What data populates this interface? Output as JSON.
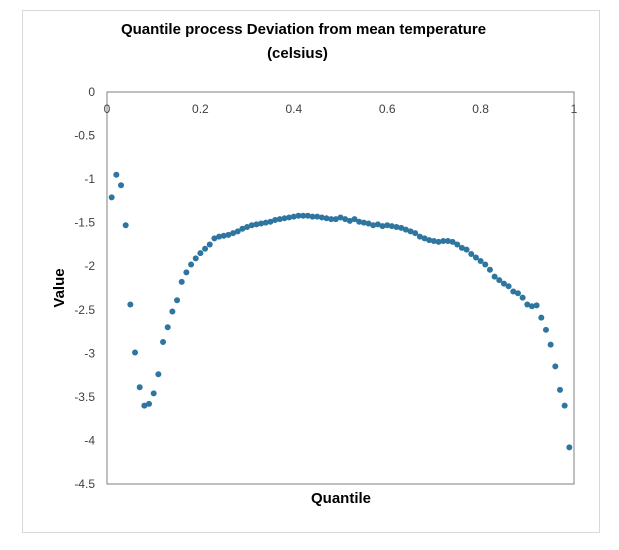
{
  "chart_data": {
    "type": "scatter",
    "title_line1": "Quantile process Deviation from mean temperature",
    "title_line2": "(celsius)",
    "xlabel": "Quantile",
    "ylabel": "Value",
    "xlim": [
      0,
      1
    ],
    "ylim": [
      -4.5,
      0
    ],
    "xticks": [
      "0",
      "0.2",
      "0.4",
      "0.6",
      "0.8",
      "1"
    ],
    "xtick_values": [
      0,
      0.2,
      0.4,
      0.6,
      0.8,
      1
    ],
    "yticks": [
      "0",
      "-0.5",
      "-1",
      "-1.5",
      "-2",
      "-2.5",
      "-3",
      "-3.5",
      "-4",
      "-4.5"
    ],
    "ytick_values": [
      0,
      -0.5,
      -1,
      -1.5,
      -2,
      -2.5,
      -3,
      -3.5,
      -4,
      -4.5
    ],
    "marker_color": "#2e75a0",
    "series": [
      {
        "name": "Quantile process",
        "points": [
          [
            0.01,
            -1.21
          ],
          [
            0.02,
            -0.95
          ],
          [
            0.03,
            -1.07
          ],
          [
            0.04,
            -1.53
          ],
          [
            0.05,
            -2.44
          ],
          [
            0.06,
            -2.99
          ],
          [
            0.07,
            -3.39
          ],
          [
            0.08,
            -3.6
          ],
          [
            0.09,
            -3.58
          ],
          [
            0.1,
            -3.46
          ],
          [
            0.11,
            -3.24
          ],
          [
            0.12,
            -2.87
          ],
          [
            0.13,
            -2.7
          ],
          [
            0.14,
            -2.52
          ],
          [
            0.15,
            -2.39
          ],
          [
            0.16,
            -2.18
          ],
          [
            0.17,
            -2.07
          ],
          [
            0.18,
            -1.98
          ],
          [
            0.19,
            -1.91
          ],
          [
            0.2,
            -1.85
          ],
          [
            0.21,
            -1.8
          ],
          [
            0.22,
            -1.75
          ],
          [
            0.23,
            -1.68
          ],
          [
            0.24,
            -1.66
          ],
          [
            0.25,
            -1.65
          ],
          [
            0.26,
            -1.64
          ],
          [
            0.27,
            -1.62
          ],
          [
            0.28,
            -1.6
          ],
          [
            0.29,
            -1.57
          ],
          [
            0.3,
            -1.55
          ],
          [
            0.31,
            -1.53
          ],
          [
            0.32,
            -1.52
          ],
          [
            0.33,
            -1.51
          ],
          [
            0.34,
            -1.5
          ],
          [
            0.35,
            -1.49
          ],
          [
            0.36,
            -1.47
          ],
          [
            0.37,
            -1.46
          ],
          [
            0.38,
            -1.45
          ],
          [
            0.39,
            -1.44
          ],
          [
            0.4,
            -1.43
          ],
          [
            0.41,
            -1.42
          ],
          [
            0.42,
            -1.42
          ],
          [
            0.43,
            -1.42
          ],
          [
            0.44,
            -1.43
          ],
          [
            0.45,
            -1.43
          ],
          [
            0.46,
            -1.44
          ],
          [
            0.47,
            -1.45
          ],
          [
            0.48,
            -1.46
          ],
          [
            0.49,
            -1.46
          ],
          [
            0.5,
            -1.44
          ],
          [
            0.51,
            -1.46
          ],
          [
            0.52,
            -1.48
          ],
          [
            0.53,
            -1.46
          ],
          [
            0.54,
            -1.49
          ],
          [
            0.55,
            -1.5
          ],
          [
            0.56,
            -1.51
          ],
          [
            0.57,
            -1.53
          ],
          [
            0.58,
            -1.52
          ],
          [
            0.59,
            -1.54
          ],
          [
            0.6,
            -1.53
          ],
          [
            0.61,
            -1.54
          ],
          [
            0.62,
            -1.55
          ],
          [
            0.63,
            -1.56
          ],
          [
            0.64,
            -1.58
          ],
          [
            0.65,
            -1.6
          ],
          [
            0.66,
            -1.62
          ],
          [
            0.67,
            -1.66
          ],
          [
            0.68,
            -1.68
          ],
          [
            0.69,
            -1.7
          ],
          [
            0.7,
            -1.71
          ],
          [
            0.71,
            -1.72
          ],
          [
            0.72,
            -1.71
          ],
          [
            0.73,
            -1.71
          ],
          [
            0.74,
            -1.72
          ],
          [
            0.75,
            -1.75
          ],
          [
            0.76,
            -1.79
          ],
          [
            0.77,
            -1.81
          ],
          [
            0.78,
            -1.86
          ],
          [
            0.79,
            -1.9
          ],
          [
            0.8,
            -1.94
          ],
          [
            0.81,
            -1.98
          ],
          [
            0.82,
            -2.04
          ],
          [
            0.83,
            -2.12
          ],
          [
            0.84,
            -2.16
          ],
          [
            0.85,
            -2.2
          ],
          [
            0.86,
            -2.23
          ],
          [
            0.87,
            -2.29
          ],
          [
            0.88,
            -2.31
          ],
          [
            0.89,
            -2.36
          ],
          [
            0.9,
            -2.44
          ],
          [
            0.91,
            -2.46
          ],
          [
            0.92,
            -2.45
          ],
          [
            0.93,
            -2.59
          ],
          [
            0.94,
            -2.73
          ],
          [
            0.95,
            -2.9
          ],
          [
            0.96,
            -3.15
          ],
          [
            0.97,
            -3.42
          ],
          [
            0.98,
            -3.6
          ],
          [
            0.99,
            -4.08
          ]
        ]
      }
    ]
  }
}
